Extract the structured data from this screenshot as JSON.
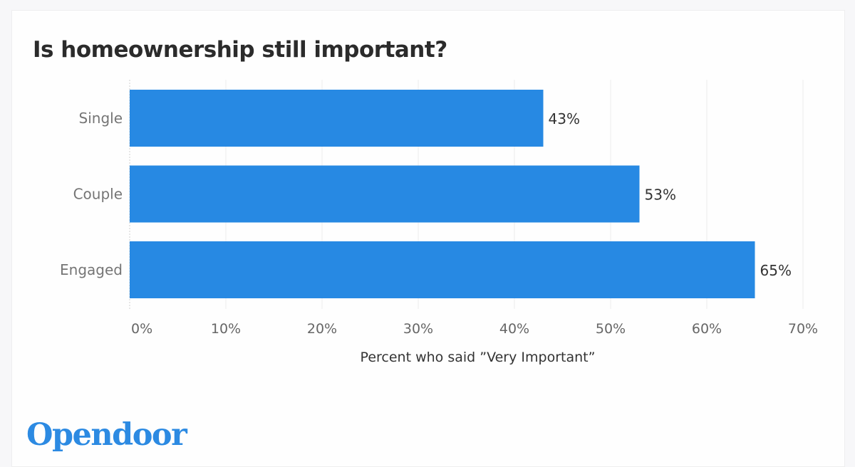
{
  "brand": {
    "logo_text": "Opendoor",
    "accent_color": "#2789e3"
  },
  "chart_data": {
    "type": "bar",
    "orientation": "horizontal",
    "title": "Is homeownership still important?",
    "categories": [
      "Single",
      "Couple",
      "Engaged"
    ],
    "values": [
      43,
      53,
      65
    ],
    "value_labels": [
      "43%",
      "53%",
      "65%"
    ],
    "xlabel": "Percent who said ”Very Important”",
    "ylabel": "",
    "xlim": [
      0,
      70
    ],
    "xticks": [
      0,
      10,
      20,
      30,
      40,
      50,
      60,
      70
    ],
    "xtick_labels": [
      "0%",
      "10%",
      "20%",
      "30%",
      "40%",
      "50%",
      "60%",
      "70%"
    ],
    "grid": true,
    "legend": "none",
    "bar_color": "#2789e3"
  }
}
